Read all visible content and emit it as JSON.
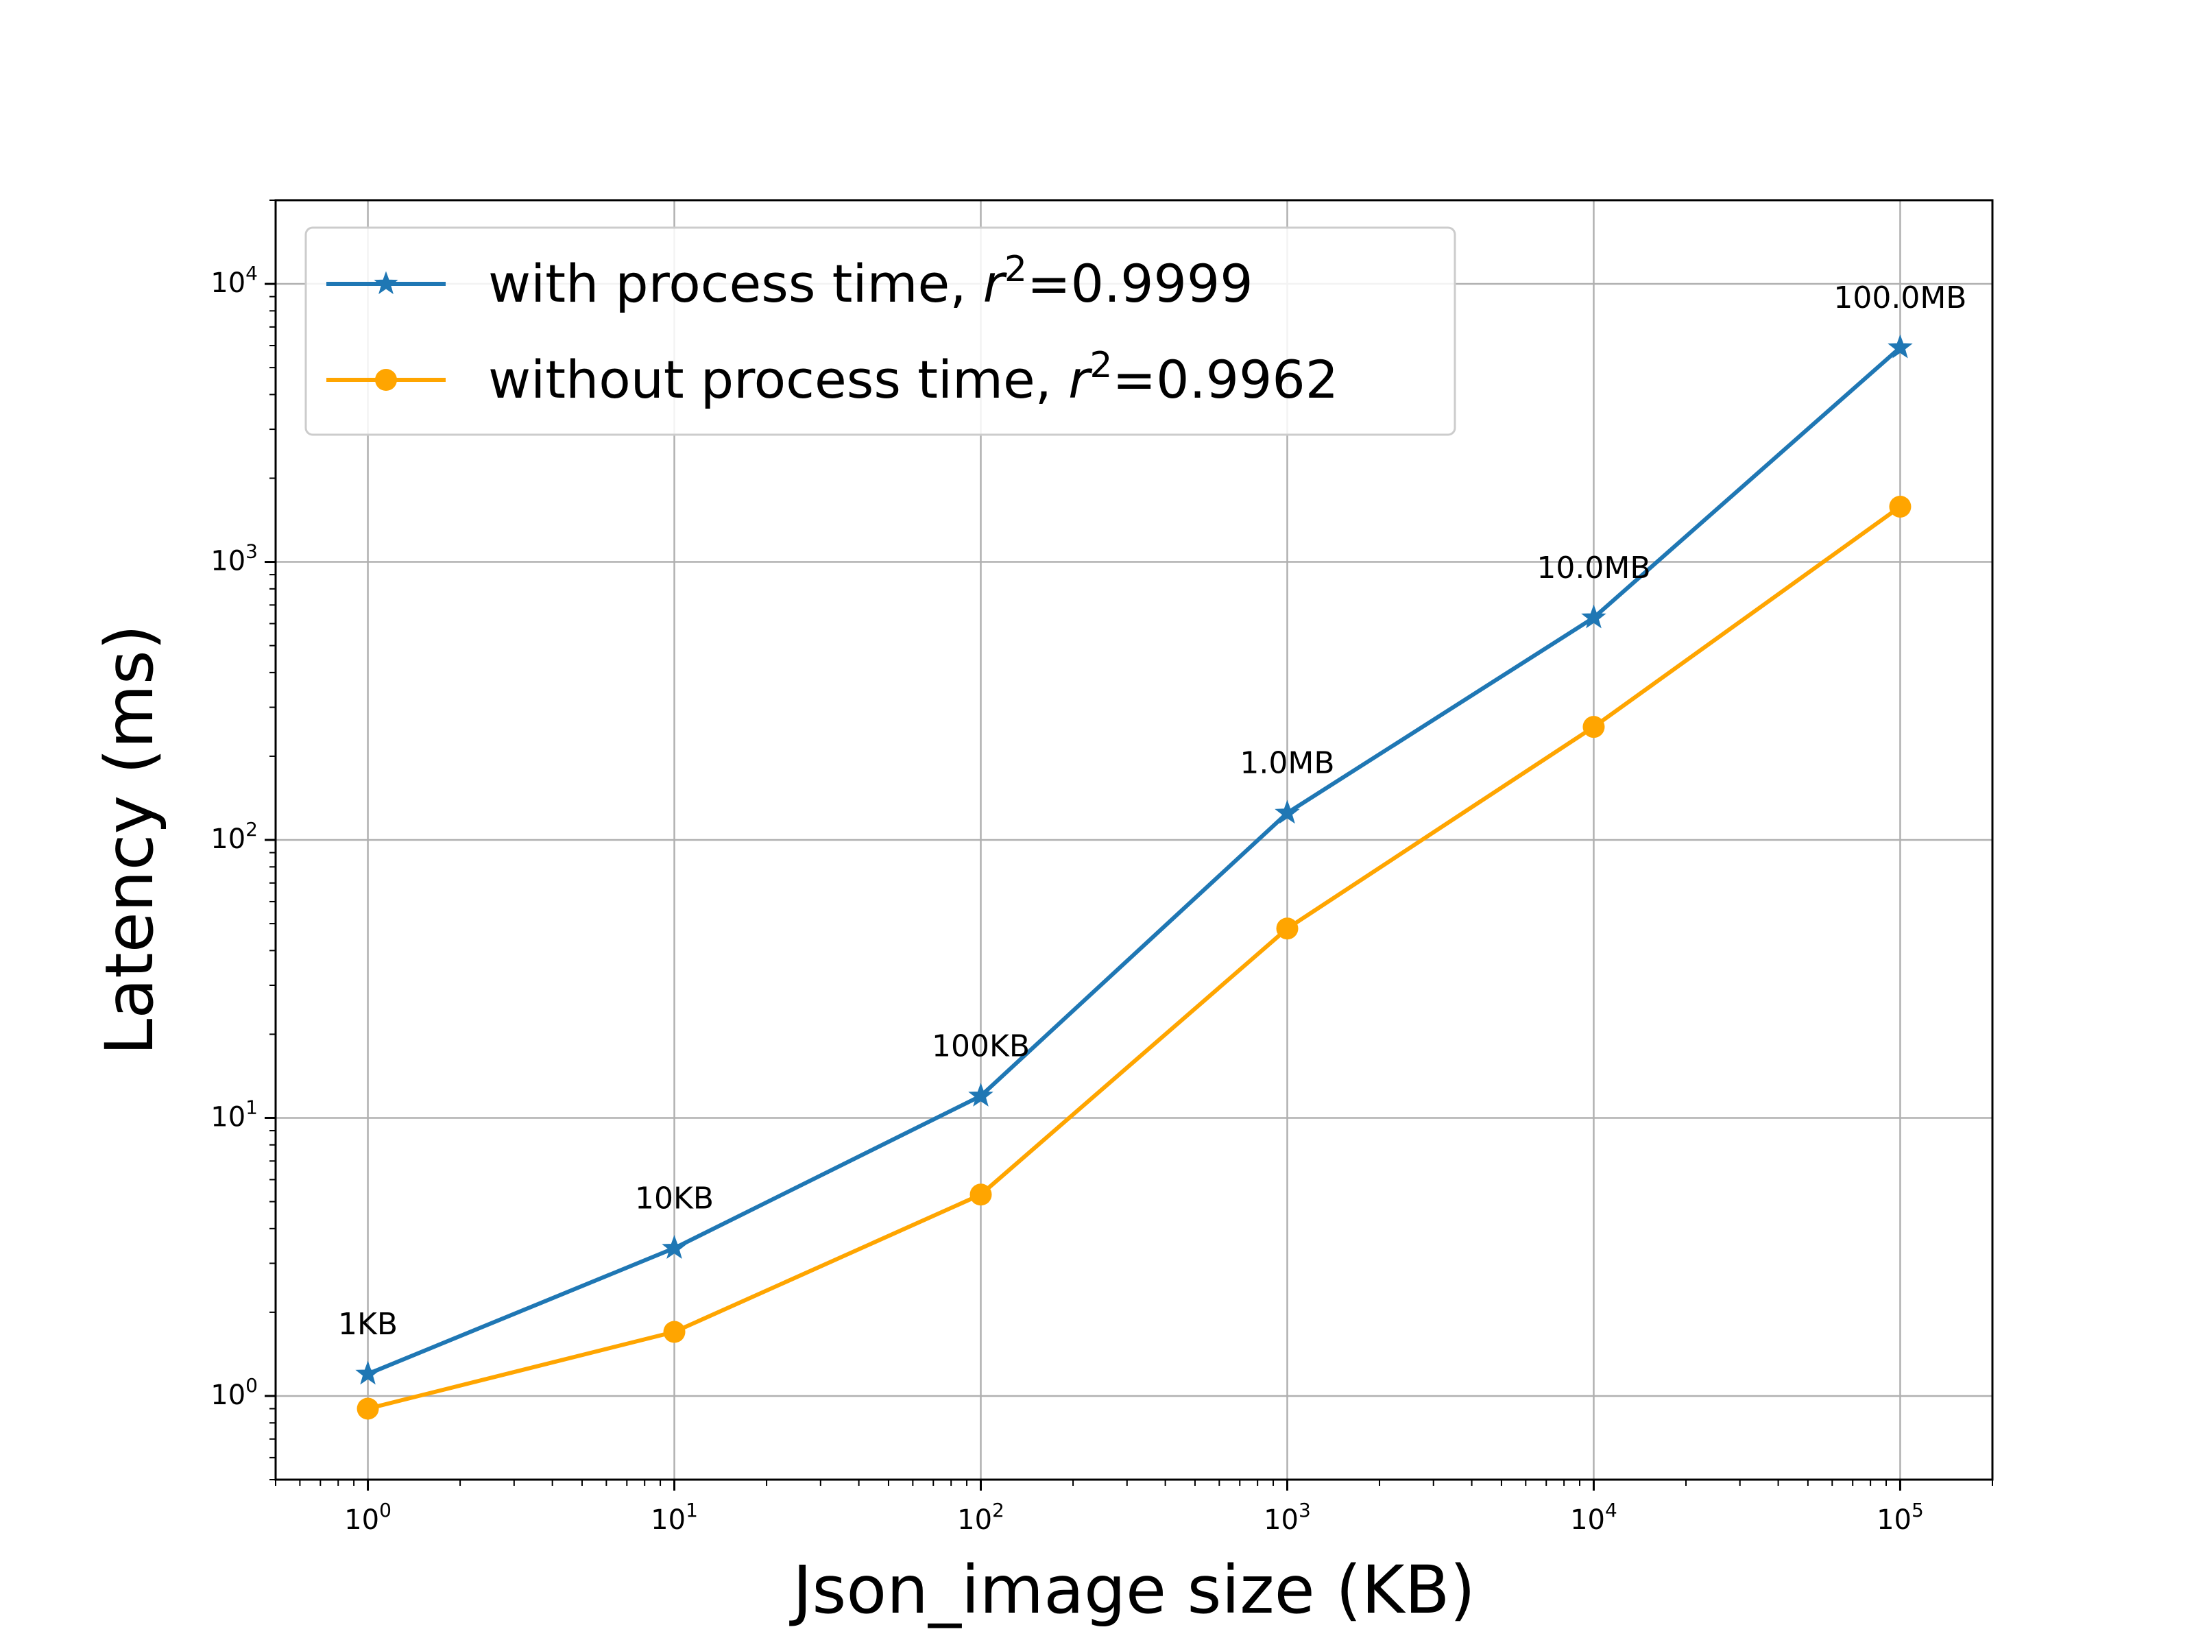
{
  "chart_data": {
    "type": "line",
    "xscale": "log",
    "yscale": "log",
    "xlim": [
      0.5,
      200000
    ],
    "ylim": [
      0.5,
      20000
    ],
    "x": [
      1,
      10,
      100,
      1000,
      10000,
      100000
    ],
    "xlabel": "Json_image size (KB)",
    "ylabel": "Latency (ms)",
    "x_ticks": [
      {
        "base": "10",
        "exp": "0"
      },
      {
        "base": "10",
        "exp": "1"
      },
      {
        "base": "10",
        "exp": "2"
      },
      {
        "base": "10",
        "exp": "3"
      },
      {
        "base": "10",
        "exp": "4"
      },
      {
        "base": "10",
        "exp": "5"
      }
    ],
    "y_ticks": [
      {
        "base": "10",
        "exp": "0"
      },
      {
        "base": "10",
        "exp": "1"
      },
      {
        "base": "10",
        "exp": "2"
      },
      {
        "base": "10",
        "exp": "3"
      },
      {
        "base": "10",
        "exp": "4"
      }
    ],
    "grid": true,
    "legend_position": "top-left",
    "series": [
      {
        "legend_prefix": "with process time, ",
        "legend_r": "r",
        "legend_sup": "2",
        "legend_suffix": "=0.9999",
        "color": "#1f77b4",
        "marker": "star",
        "values": [
          1.2,
          3.4,
          12,
          125,
          630,
          5900
        ]
      },
      {
        "legend_prefix": "without process time, ",
        "legend_r": "r",
        "legend_sup": "2",
        "legend_suffix": "=0.9962",
        "color": "#ffa500",
        "marker": "circle",
        "values": [
          0.9,
          1.7,
          5.3,
          48,
          255,
          1580
        ]
      }
    ],
    "annotations": [
      "1KB",
      "10KB",
      "100KB",
      "1.0MB",
      "10.0MB",
      "100.0MB"
    ]
  }
}
